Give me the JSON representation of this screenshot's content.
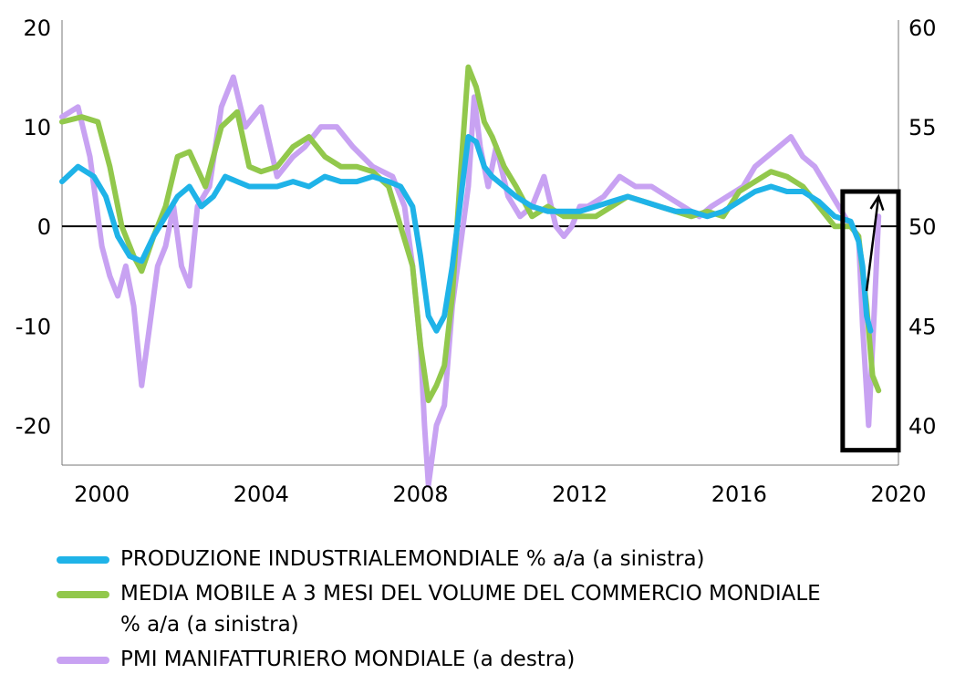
{
  "chart_data": {
    "type": "line",
    "x_axis": {
      "range": [
        1999,
        2020
      ],
      "ticks": [
        "2000",
        "2004",
        "2008",
        "2012",
        "2016",
        "2020"
      ],
      "tick_values": [
        2000,
        2004,
        2008,
        2012,
        2016,
        2020
      ]
    },
    "y_left": {
      "range": [
        -24,
        20
      ],
      "ticks": [
        "20",
        "10",
        "0",
        "-10",
        "-20"
      ],
      "tick_values": [
        20,
        10,
        0,
        -10,
        -20
      ]
    },
    "y_right": {
      "range": [
        38,
        60
      ],
      "ticks": [
        "60",
        "55",
        "50",
        "45",
        "40"
      ],
      "tick_values": [
        60,
        55,
        50,
        45,
        40
      ]
    },
    "zero_line": true,
    "highlight_box": {
      "x_range": [
        2018.6,
        2020.0
      ],
      "y_range": [
        -22.5,
        3.5
      ],
      "axis": "left"
    },
    "arrow": {
      "from": [
        2019.2,
        -6.5
      ],
      "to": [
        2019.5,
        3.0
      ],
      "axis": "left"
    },
    "series": [
      {
        "name": "PMI MANIFATTURIERO MONDIALE (a destra)",
        "axis": "right",
        "color": "#c8a2f2",
        "x": [
          1999.0,
          1999.4,
          1999.7,
          2000.0,
          2000.2,
          2000.4,
          2000.6,
          2000.8,
          2001.0,
          2001.2,
          2001.4,
          2001.6,
          2001.8,
          2002.0,
          2002.2,
          2002.4,
          2002.7,
          2003.0,
          2003.3,
          2003.6,
          2004.0,
          2004.4,
          2004.8,
          2005.1,
          2005.5,
          2005.9,
          2006.3,
          2006.8,
          2007.3,
          2007.6,
          2007.8,
          2008.0,
          2008.1,
          2008.2,
          2008.4,
          2008.6,
          2008.8,
          2009.0,
          2009.2,
          2009.35,
          2009.5,
          2009.7,
          2009.9,
          2010.2,
          2010.5,
          2010.8,
          2011.1,
          2011.4,
          2011.6,
          2011.8,
          2012.0,
          2012.2,
          2012.6,
          2013.0,
          2013.4,
          2013.8,
          2014.2,
          2014.6,
          2015.0,
          2015.3,
          2015.7,
          2016.1,
          2016.4,
          2016.7,
          2017.0,
          2017.3,
          2017.6,
          2017.9,
          2018.2,
          2018.5,
          2018.8,
          2019.0,
          2019.1,
          2019.25,
          2019.4,
          2019.5
        ],
        "y": [
          55.5,
          56.0,
          53.5,
          49.0,
          47.5,
          46.5,
          48.0,
          46.0,
          42.0,
          45.0,
          48.0,
          49.0,
          51.0,
          48.0,
          47.0,
          51.0,
          52.0,
          56.0,
          57.5,
          55.0,
          56.0,
          52.5,
          53.5,
          54.0,
          55.0,
          55.0,
          54.0,
          53.0,
          52.5,
          51.0,
          48.0,
          44.0,
          40.0,
          37.0,
          40.0,
          41.0,
          46.0,
          49.0,
          52.0,
          56.5,
          54.0,
          52.0,
          54.0,
          51.5,
          50.5,
          51.0,
          52.5,
          50.0,
          49.5,
          50.0,
          51.0,
          51.0,
          51.5,
          52.5,
          52.0,
          52.0,
          51.5,
          51.0,
          50.5,
          51.0,
          51.5,
          52.0,
          53.0,
          53.5,
          54.0,
          54.5,
          53.5,
          53.0,
          52.0,
          51.0,
          50.0,
          49.5,
          45.0,
          40.0,
          46.0,
          50.5
        ]
      },
      {
        "name": "MEDIA MOBILE A 3 MESI DEL VOLUME DEL COMMERCIO MONDIALE % a/a (a sinistra)",
        "axis": "left",
        "color": "#92c84c",
        "x": [
          1999.0,
          1999.5,
          1999.9,
          2000.2,
          2000.5,
          2000.8,
          2001.0,
          2001.3,
          2001.6,
          2001.9,
          2002.2,
          2002.6,
          2003.0,
          2003.4,
          2003.7,
          2004.0,
          2004.4,
          2004.8,
          2005.2,
          2005.6,
          2006.0,
          2006.4,
          2006.8,
          2007.2,
          2007.5,
          2007.8,
          2008.0,
          2008.2,
          2008.4,
          2008.6,
          2008.8,
          2009.0,
          2009.2,
          2009.4,
          2009.6,
          2009.8,
          2010.1,
          2010.4,
          2010.8,
          2011.2,
          2011.6,
          2012.0,
          2012.4,
          2012.8,
          2013.2,
          2013.6,
          2014.0,
          2014.4,
          2014.8,
          2015.2,
          2015.6,
          2016.0,
          2016.4,
          2016.8,
          2017.2,
          2017.6,
          2018.0,
          2018.4,
          2018.8,
          2019.0,
          2019.2,
          2019.35,
          2019.5
        ],
        "y": [
          10.5,
          11.0,
          10.5,
          6.0,
          0.0,
          -3.0,
          -4.5,
          -1.0,
          2.0,
          7.0,
          7.5,
          4.0,
          10.0,
          11.5,
          6.0,
          5.5,
          6.0,
          8.0,
          9.0,
          7.0,
          6.0,
          6.0,
          5.5,
          4.0,
          0.0,
          -4.0,
          -12.0,
          -17.5,
          -16.0,
          -14.0,
          -7.0,
          5.0,
          16.0,
          14.0,
          10.5,
          9.0,
          6.0,
          4.0,
          1.0,
          2.0,
          1.0,
          1.0,
          1.0,
          2.0,
          3.0,
          2.5,
          2.0,
          1.5,
          1.0,
          1.5,
          1.0,
          3.5,
          4.5,
          5.5,
          5.0,
          4.0,
          2.0,
          0.0,
          0.0,
          -1.0,
          -8.0,
          -15.0,
          -16.5
        ]
      },
      {
        "name": "PRODUZIONE INDUSTRIALEMONDIALE % a/a (a sinistra)",
        "axis": "left",
        "color": "#1fb3e8",
        "x": [
          1999.0,
          1999.4,
          1999.8,
          2000.1,
          2000.4,
          2000.7,
          2001.0,
          2001.3,
          2001.6,
          2001.9,
          2002.2,
          2002.5,
          2002.8,
          2003.1,
          2003.4,
          2003.7,
          2004.0,
          2004.4,
          2004.8,
          2005.2,
          2005.6,
          2006.0,
          2006.4,
          2006.8,
          2007.2,
          2007.5,
          2007.8,
          2008.0,
          2008.2,
          2008.4,
          2008.6,
          2008.8,
          2009.0,
          2009.2,
          2009.4,
          2009.6,
          2009.8,
          2010.1,
          2010.4,
          2010.8,
          2011.2,
          2011.6,
          2012.0,
          2012.4,
          2012.8,
          2013.2,
          2013.6,
          2014.0,
          2014.4,
          2014.8,
          2015.2,
          2015.6,
          2016.0,
          2016.4,
          2016.8,
          2017.2,
          2017.6,
          2018.0,
          2018.4,
          2018.8,
          2019.0,
          2019.1,
          2019.2,
          2019.3
        ],
        "y": [
          4.5,
          6.0,
          5.0,
          3.0,
          -1.0,
          -3.0,
          -3.5,
          -1.0,
          1.0,
          3.0,
          4.0,
          2.0,
          3.0,
          5.0,
          4.5,
          4.0,
          4.0,
          4.0,
          4.5,
          4.0,
          5.0,
          4.5,
          4.5,
          5.0,
          4.5,
          4.0,
          2.0,
          -3.0,
          -9.0,
          -10.5,
          -9.0,
          -4.0,
          2.5,
          9.0,
          8.5,
          6.0,
          5.0,
          4.0,
          3.0,
          2.0,
          1.5,
          1.5,
          1.5,
          2.0,
          2.5,
          3.0,
          2.5,
          2.0,
          1.5,
          1.5,
          1.0,
          1.5,
          2.5,
          3.5,
          4.0,
          3.5,
          3.5,
          2.5,
          1.0,
          0.5,
          -1.5,
          -4.0,
          -9.0,
          -10.5
        ]
      }
    ]
  },
  "legend": [
    {
      "label": "PRODUZIONE INDUSTRIALEMONDIALE % a/a (a sinistra)",
      "color": "#1fb3e8"
    },
    {
      "label": "MEDIA MOBILE A 3 MESI DEL VOLUME DEL COMMERCIO MONDIALE % a/a (a sinistra)",
      "color": "#92c84c"
    },
    {
      "label": "PMI MANIFATTURIERO MONDIALE (a destra)",
      "color": "#c8a2f2"
    }
  ]
}
